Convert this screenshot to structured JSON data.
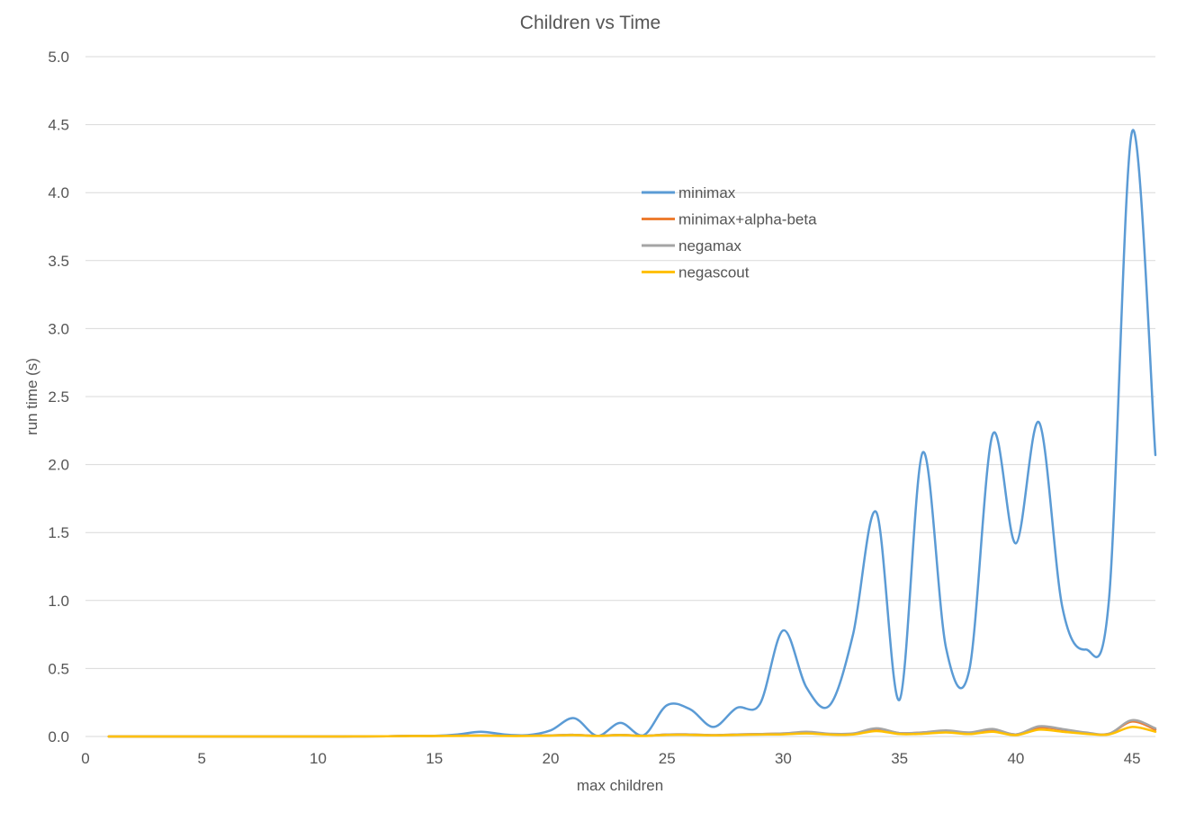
{
  "chart_data": {
    "type": "line",
    "title": "Children vs Time",
    "xlabel": "max children",
    "ylabel": "run time (s)",
    "xlim": [
      0,
      46
    ],
    "ylim": [
      0,
      5.0
    ],
    "x_ticks": [
      "0",
      "5",
      "10",
      "15",
      "20",
      "25",
      "30",
      "35",
      "40",
      "45"
    ],
    "y_ticks": [
      "0.0",
      "0.5",
      "1.0",
      "1.5",
      "2.0",
      "2.5",
      "3.0",
      "3.5",
      "4.0",
      "4.5",
      "5.0"
    ],
    "grid": "horizontal",
    "legend_position": "inside-top-center",
    "smooth": true,
    "x": [
      1,
      2,
      3,
      4,
      5,
      6,
      7,
      8,
      9,
      10,
      11,
      12,
      13,
      14,
      15,
      16,
      17,
      18,
      19,
      20,
      21,
      22,
      23,
      24,
      25,
      26,
      27,
      28,
      29,
      30,
      31,
      32,
      33,
      34,
      35,
      36,
      37,
      38,
      39,
      40,
      41,
      42,
      43,
      44,
      45,
      46
    ],
    "series": [
      {
        "name": "minimax",
        "color": "#5b9bd5",
        "values": [
          0,
          0,
          0,
          0,
          0,
          0,
          0,
          0,
          0,
          0,
          0,
          0.001,
          0.002,
          0.005,
          0.005,
          0.015,
          0.035,
          0.015,
          0.01,
          0.045,
          0.135,
          0.005,
          0.1,
          0.01,
          0.23,
          0.2,
          0.07,
          0.21,
          0.24,
          0.78,
          0.36,
          0.23,
          0.75,
          1.65,
          0.27,
          2.09,
          0.65,
          0.49,
          2.22,
          1.42,
          2.31,
          0.95,
          0.64,
          1.0,
          4.45,
          2.07
        ]
      },
      {
        "name": "minimax+alpha-beta",
        "color": "#ed7d31",
        "values": [
          0,
          0,
          0,
          0,
          0,
          0,
          0,
          0,
          0,
          0,
          0,
          0.001,
          0.002,
          0.004,
          0.004,
          0.006,
          0.008,
          0.005,
          0.005,
          0.008,
          0.012,
          0.005,
          0.012,
          0.005,
          0.015,
          0.015,
          0.01,
          0.015,
          0.018,
          0.022,
          0.03,
          0.018,
          0.02,
          0.055,
          0.025,
          0.03,
          0.04,
          0.025,
          0.05,
          0.015,
          0.065,
          0.05,
          0.025,
          0.02,
          0.11,
          0.05
        ]
      },
      {
        "name": "negamax",
        "color": "#a5a5a5",
        "values": [
          0,
          0,
          0,
          0,
          0,
          0,
          0,
          0,
          0,
          0,
          0,
          0.001,
          0.002,
          0.004,
          0.004,
          0.006,
          0.008,
          0.005,
          0.005,
          0.008,
          0.012,
          0.005,
          0.012,
          0.005,
          0.015,
          0.015,
          0.01,
          0.015,
          0.018,
          0.022,
          0.035,
          0.02,
          0.022,
          0.06,
          0.025,
          0.03,
          0.045,
          0.03,
          0.055,
          0.015,
          0.075,
          0.055,
          0.03,
          0.02,
          0.12,
          0.06
        ]
      },
      {
        "name": "negascout",
        "color": "#ffc000",
        "values": [
          0,
          0,
          0,
          0,
          0,
          0,
          0,
          0,
          0,
          0,
          0,
          0.001,
          0.002,
          0.003,
          0.003,
          0.004,
          0.006,
          0.004,
          0.004,
          0.006,
          0.01,
          0.004,
          0.01,
          0.004,
          0.012,
          0.012,
          0.008,
          0.012,
          0.014,
          0.016,
          0.022,
          0.014,
          0.015,
          0.04,
          0.018,
          0.02,
          0.03,
          0.018,
          0.035,
          0.01,
          0.05,
          0.035,
          0.02,
          0.015,
          0.07,
          0.035
        ]
      }
    ]
  }
}
